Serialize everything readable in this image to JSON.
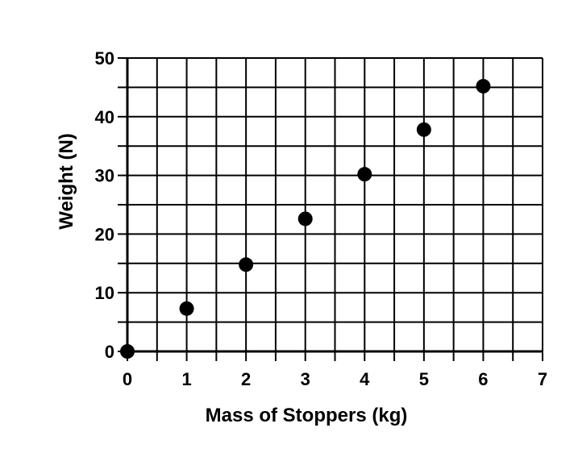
{
  "chart_data": {
    "type": "scatter",
    "title": "",
    "xlabel": "Mass of Stoppers (kg)",
    "ylabel": "Weight (N)",
    "xlim": [
      0,
      7
    ],
    "ylim": [
      0,
      50
    ],
    "x_ticks": [
      0,
      1,
      2,
      3,
      4,
      5,
      6,
      7
    ],
    "y_ticks": [
      0,
      10,
      20,
      30,
      40,
      50
    ],
    "x_minor_step": 0.5,
    "y_minor_step": 5,
    "grid": true,
    "points": [
      {
        "x": 0,
        "y": 0
      },
      {
        "x": 1,
        "y": 7.3
      },
      {
        "x": 2,
        "y": 14.8
      },
      {
        "x": 3,
        "y": 22.6
      },
      {
        "x": 4,
        "y": 30.2
      },
      {
        "x": 5,
        "y": 37.8
      },
      {
        "x": 6,
        "y": 45.2
      }
    ],
    "marker_color": "#000000",
    "grid_color": "#000000"
  }
}
